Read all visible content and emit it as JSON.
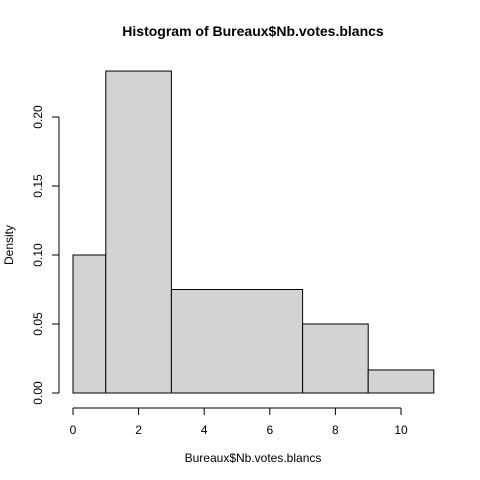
{
  "chart_data": {
    "type": "bar",
    "title": "Histogram of Bureaux$Nb.votes.blancs",
    "xlabel": "Bureaux$Nb.votes.blancs",
    "ylabel": "Density",
    "bins": [
      {
        "start": 0,
        "end": 1,
        "density": 0.1
      },
      {
        "start": 1,
        "end": 3,
        "density": 0.2333
      },
      {
        "start": 3,
        "end": 7,
        "density": 0.075
      },
      {
        "start": 7,
        "end": 9,
        "density": 0.05
      },
      {
        "start": 9,
        "end": 11,
        "density": 0.0167
      }
    ],
    "xlim": [
      0,
      11
    ],
    "ylim": [
      0,
      0.2333
    ],
    "xticks": [
      0,
      2,
      4,
      6,
      8,
      10
    ],
    "xtick_labels": [
      "0",
      "2",
      "4",
      "6",
      "8",
      "10"
    ],
    "yticks": [
      0,
      0.05,
      0.1,
      0.15,
      0.2
    ],
    "ytick_labels": [
      "0.00",
      "0.05",
      "0.10",
      "0.15",
      "0.20"
    ],
    "grid": false,
    "colors": {
      "bar_fill": "#d3d3d3",
      "bar_stroke": "#000000"
    }
  }
}
